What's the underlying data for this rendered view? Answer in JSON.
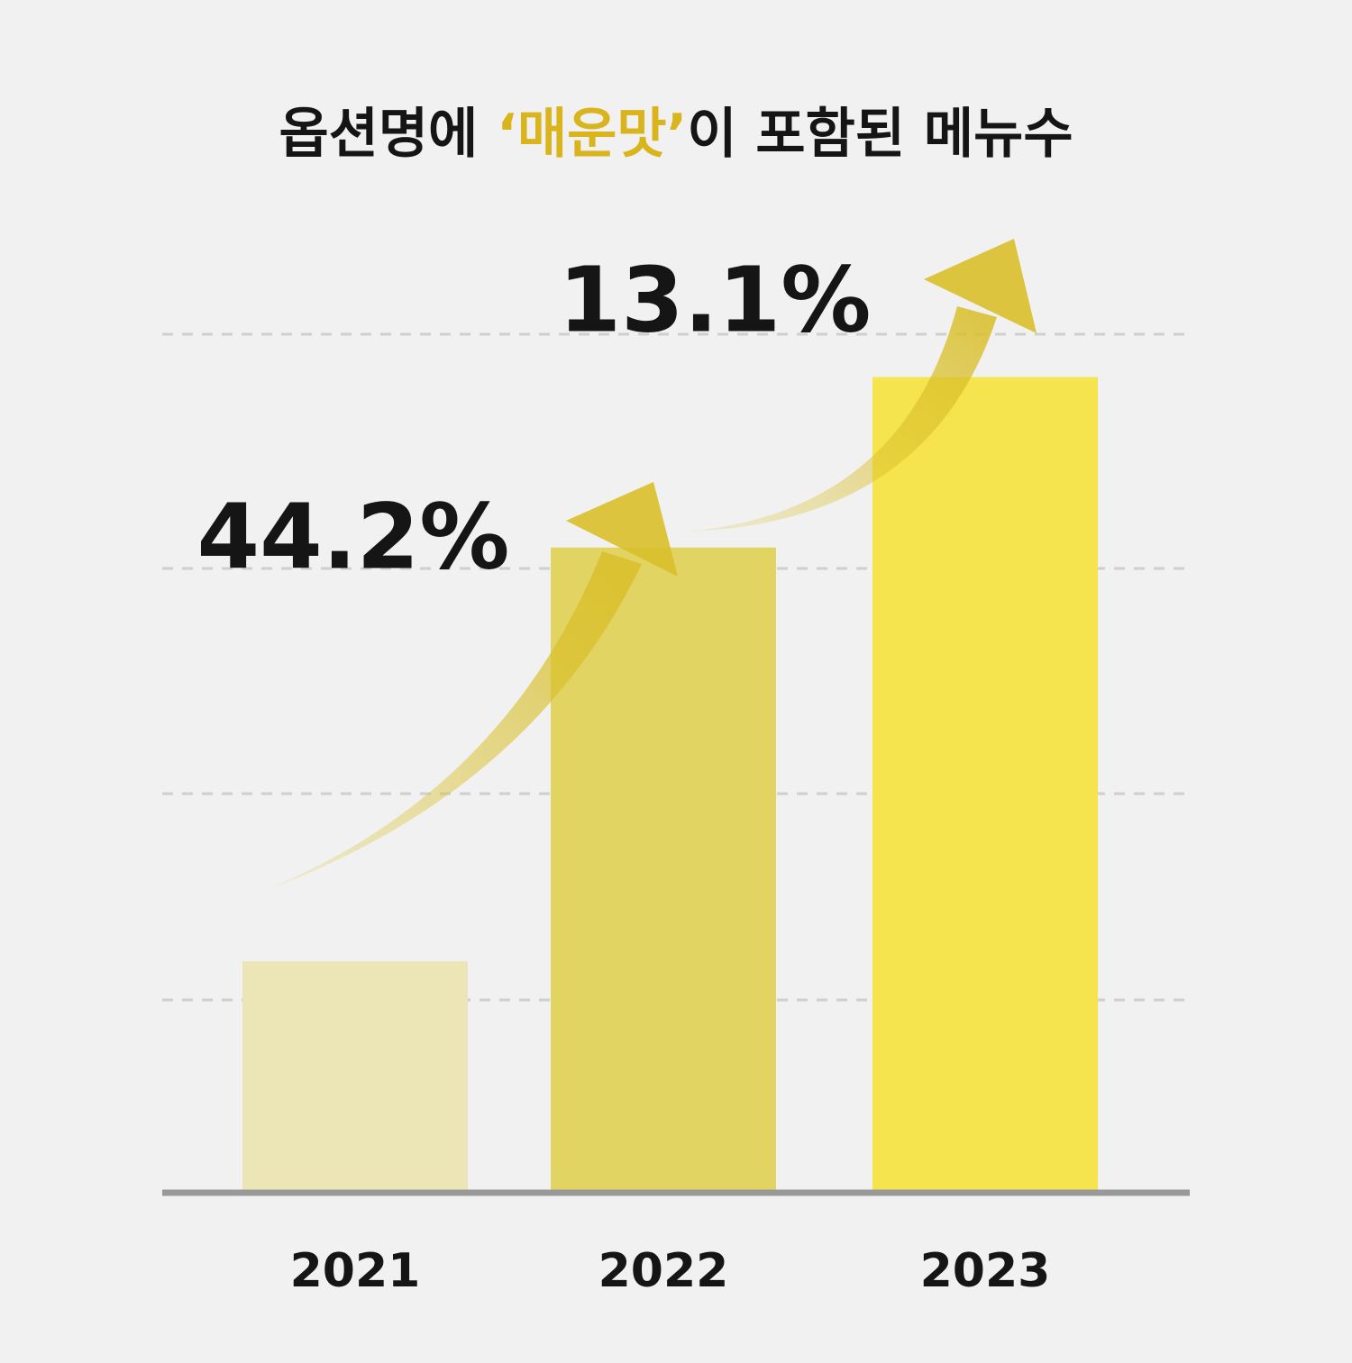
{
  "chart_data": {
    "type": "bar",
    "title_parts": [
      "옵션명에 ",
      "‘매운맛’",
      "이 포함된 메뉴수"
    ],
    "title_highlight_color": "#d9b41c",
    "categories": [
      "2021",
      "2022",
      "2023"
    ],
    "values": [
      26.8,
      75.1,
      95.0
    ],
    "colors": [
      "#ece6b6",
      "#e2d462",
      "#f5e44e"
    ],
    "ylim": [
      0,
      100
    ],
    "annotations": [
      "44.2%",
      "13.1%"
    ]
  }
}
